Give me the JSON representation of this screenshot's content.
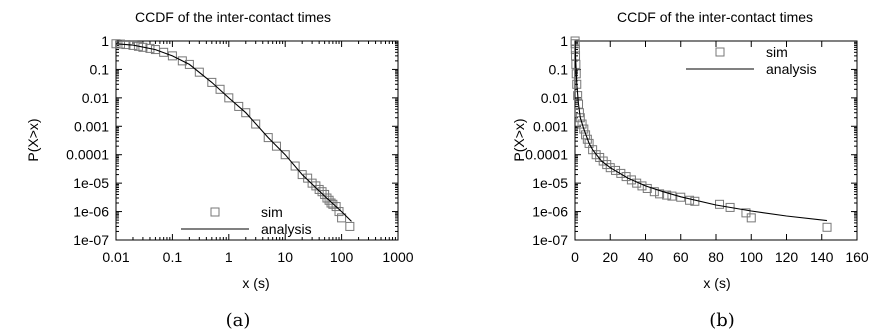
{
  "captions": [
    "(a)",
    "(b)"
  ],
  "chart_data": [
    {
      "type": "scatter",
      "title": "CCDF of the inter-contact times",
      "xlabel": "x (s)",
      "ylabel": "P(X>x)",
      "xscale": "log",
      "yscale": "log",
      "xlim": [
        0.01,
        1000
      ],
      "ylim": [
        1e-07,
        1
      ],
      "xticks": [
        0.01,
        0.1,
        1,
        10,
        100,
        1000
      ],
      "xtick_labels": [
        "0.01",
        "0.1",
        "1",
        "10",
        "100",
        "1000"
      ],
      "yticks": [
        1,
        0.1,
        0.01,
        0.001,
        0.0001,
        1e-05,
        1e-06,
        1e-07
      ],
      "ytick_labels": [
        "1",
        "0.1",
        "0.01",
        "0.001",
        "0.0001",
        "1e-05",
        "1e-06",
        "1e-07"
      ],
      "legend_position": "bottom-left",
      "series": [
        {
          "name": "sim",
          "kind": "markers",
          "marker": "open-square",
          "x": [
            0.01,
            0.012,
            0.015,
            0.02,
            0.025,
            0.03,
            0.04,
            0.05,
            0.07,
            0.1,
            0.15,
            0.2,
            0.3,
            0.5,
            0.7,
            1,
            1.5,
            2,
            3,
            5,
            7,
            10,
            15,
            20,
            25,
            30,
            35,
            40,
            45,
            50,
            55,
            60,
            65,
            70,
            80,
            90,
            100,
            140
          ],
          "y": [
            0.8,
            0.78,
            0.75,
            0.7,
            0.65,
            0.6,
            0.55,
            0.5,
            0.4,
            0.3,
            0.2,
            0.15,
            0.08,
            0.035,
            0.02,
            0.01,
            0.005,
            0.003,
            0.0012,
            0.0004,
            0.0002,
            0.0001,
            4e-05,
            2e-05,
            1.5e-05,
            1e-05,
            8e-06,
            6e-06,
            5e-06,
            4e-06,
            3e-06,
            2.5e-06,
            2e-06,
            1.8e-06,
            1.5e-06,
            1e-06,
            6e-07,
            3e-07
          ]
        },
        {
          "name": "analysis",
          "kind": "line",
          "x": [
            0.01,
            0.02,
            0.05,
            0.1,
            0.2,
            0.5,
            1,
            2,
            5,
            10,
            20,
            50,
            100,
            150
          ],
          "y": [
            0.8,
            0.72,
            0.5,
            0.3,
            0.15,
            0.035,
            0.01,
            0.003,
            0.0004,
            0.0001,
            2e-05,
            3.5e-06,
            1e-06,
            4.5e-07
          ]
        }
      ]
    },
    {
      "type": "scatter",
      "title": "CCDF of the inter-contact times",
      "xlabel": "x (s)",
      "ylabel": "P(X>x)",
      "xscale": "linear",
      "yscale": "log",
      "xlim": [
        0,
        160
      ],
      "ylim": [
        1e-07,
        1
      ],
      "xticks": [
        0,
        20,
        40,
        60,
        80,
        100,
        120,
        140,
        160
      ],
      "xtick_labels": [
        "0",
        "20",
        "40",
        "60",
        "80",
        "100",
        "120",
        "140",
        "160"
      ],
      "yticks": [
        1,
        0.1,
        0.01,
        0.001,
        0.0001,
        1e-05,
        1e-06,
        1e-07
      ],
      "ytick_labels": [
        "1",
        "0.1",
        "0.01",
        "0.001",
        "0.0001",
        "1e-05",
        "1e-06",
        "1e-07"
      ],
      "legend_position": "top-right",
      "series": [
        {
          "name": "sim",
          "kind": "markers",
          "marker": "open-square",
          "x": [
            0.05,
            0.1,
            0.2,
            0.3,
            0.5,
            0.7,
            1,
            1.5,
            2,
            2.5,
            3,
            4,
            5,
            6,
            7,
            8,
            10,
            12,
            14,
            16,
            18,
            20,
            23,
            26,
            29,
            32,
            35,
            38,
            41,
            45,
            48,
            52,
            55,
            60,
            65,
            68,
            82,
            88,
            97,
            100,
            143
          ],
          "y": [
            1,
            0.8,
            0.5,
            0.3,
            0.15,
            0.07,
            0.03,
            0.012,
            0.006,
            0.003,
            0.002,
            0.0012,
            0.0008,
            0.0005,
            0.00035,
            0.00025,
            0.00015,
            0.0001,
            8e-05,
            6e-05,
            4.5e-05,
            3.5e-05,
            2.8e-05,
            2.2e-05,
            1.7e-05,
            1.3e-05,
            1e-05,
            8e-06,
            6.5e-06,
            5e-06,
            4.2e-06,
            3.8e-06,
            3.5e-06,
            3.2e-06,
            2.5e-06,
            2.3e-06,
            1.8e-06,
            1.4e-06,
            9e-07,
            6e-07,
            2.8e-07
          ]
        },
        {
          "name": "analysis",
          "kind": "line",
          "x": [
            0.05,
            0.1,
            0.3,
            0.5,
            1,
            2,
            3,
            5,
            8,
            10,
            15,
            20,
            30,
            40,
            50,
            60,
            80,
            100,
            120,
            143
          ],
          "y": [
            1,
            0.8,
            0.3,
            0.15,
            0.03,
            0.006,
            0.002,
            0.0008,
            0.00025,
            0.00015,
            6e-05,
            3.5e-05,
            1.5e-05,
            8e-06,
            5e-06,
            3.3e-06,
            1.7e-06,
            1.05e-06,
            7e-07,
            4.8e-07
          ]
        }
      ]
    }
  ]
}
